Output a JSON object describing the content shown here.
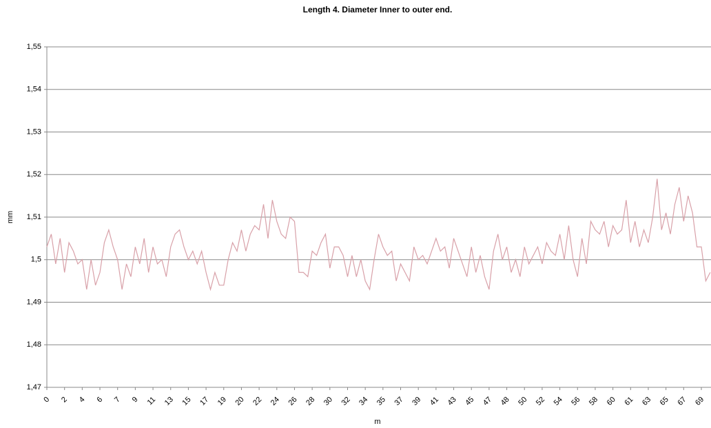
{
  "chart_data": {
    "type": "line",
    "title": "Length 4. Diameter Inner to outer end.",
    "y_label": "mm",
    "x_label": "m",
    "categories": [
      "0",
      null,
      null,
      null,
      "2",
      null,
      null,
      null,
      "4",
      null,
      null,
      null,
      "6",
      null,
      null,
      null,
      "7",
      null,
      null,
      null,
      "9",
      null,
      null,
      null,
      "11",
      null,
      null,
      null,
      "13",
      null,
      null,
      null,
      "15",
      null,
      null,
      null,
      "17",
      null,
      null,
      null,
      "19",
      null,
      null,
      null,
      "20",
      null,
      null,
      null,
      "22",
      null,
      null,
      null,
      "24",
      null,
      null,
      null,
      "26",
      null,
      null,
      null,
      "28",
      null,
      null,
      null,
      "30",
      null,
      null,
      null,
      "32",
      null,
      null,
      null,
      "34",
      null,
      null,
      null,
      "35",
      null,
      null,
      null,
      "37",
      null,
      null,
      null,
      "39",
      null,
      null,
      null,
      "41",
      null,
      null,
      null,
      "43",
      null,
      null,
      null,
      "45",
      null,
      null,
      null,
      "47",
      null,
      null,
      null,
      "48",
      null,
      null,
      null,
      "50",
      null,
      null,
      null,
      "52",
      null,
      null,
      null,
      "54",
      null,
      null,
      null,
      "56",
      null,
      null,
      null,
      "58",
      null,
      null,
      null,
      "60",
      null,
      null,
      null,
      "61",
      null,
      null,
      null,
      "63",
      null,
      null,
      null,
      "65",
      null,
      null,
      null,
      "67",
      null,
      null,
      null,
      "69",
      null,
      null
    ],
    "values": [
      1.503,
      1.506,
      1.499,
      1.505,
      1.497,
      1.504,
      1.502,
      1.499,
      1.5,
      1.493,
      1.5,
      1.494,
      1.497,
      1.504,
      1.507,
      1.503,
      1.5,
      1.493,
      1.499,
      1.496,
      1.503,
      1.499,
      1.505,
      1.497,
      1.503,
      1.499,
      1.5,
      1.496,
      1.503,
      1.506,
      1.507,
      1.503,
      1.5,
      1.502,
      1.499,
      1.502,
      1.497,
      1.493,
      1.497,
      1.494,
      1.494,
      1.5,
      1.504,
      1.502,
      1.507,
      1.502,
      1.506,
      1.508,
      1.507,
      1.513,
      1.505,
      1.514,
      1.509,
      1.506,
      1.505,
      1.51,
      1.509,
      1.497,
      1.497,
      1.496,
      1.502,
      1.501,
      1.504,
      1.506,
      1.498,
      1.503,
      1.503,
      1.501,
      1.496,
      1.501,
      1.496,
      1.5,
      1.495,
      1.493,
      1.5,
      1.506,
      1.503,
      1.501,
      1.502,
      1.495,
      1.499,
      1.497,
      1.495,
      1.503,
      1.5,
      1.501,
      1.499,
      1.502,
      1.505,
      1.502,
      1.503,
      1.498,
      1.505,
      1.502,
      1.499,
      1.496,
      1.503,
      1.497,
      1.501,
      1.496,
      1.493,
      1.502,
      1.506,
      1.5,
      1.503,
      1.497,
      1.5,
      1.496,
      1.503,
      1.499,
      1.501,
      1.503,
      1.499,
      1.504,
      1.502,
      1.501,
      1.506,
      1.5,
      1.508,
      1.5,
      1.496,
      1.505,
      1.499,
      1.509,
      1.507,
      1.506,
      1.509,
      1.503,
      1.508,
      1.506,
      1.507,
      1.514,
      1.504,
      1.509,
      1.503,
      1.507,
      1.504,
      1.51,
      1.519,
      1.507,
      1.511,
      1.506,
      1.513,
      1.517,
      1.509,
      1.515,
      1.511,
      1.503,
      1.503,
      1.495,
      1.497
    ],
    "color": "#d8a0a8",
    "ylim": [
      1.47,
      1.55
    ],
    "yticks": [
      {
        "value": 1.47,
        "label": "1,47"
      },
      {
        "value": 1.48,
        "label": "1,48"
      },
      {
        "value": 1.49,
        "label": "1,49"
      },
      {
        "value": 1.5,
        "label": "1,5"
      },
      {
        "value": 1.51,
        "label": "1,51"
      },
      {
        "value": 1.52,
        "label": "1,52"
      },
      {
        "value": 1.53,
        "label": "1,53"
      },
      {
        "value": 1.54,
        "label": "1,54"
      },
      {
        "value": 1.55,
        "label": "1,55"
      }
    ],
    "grid": true
  }
}
